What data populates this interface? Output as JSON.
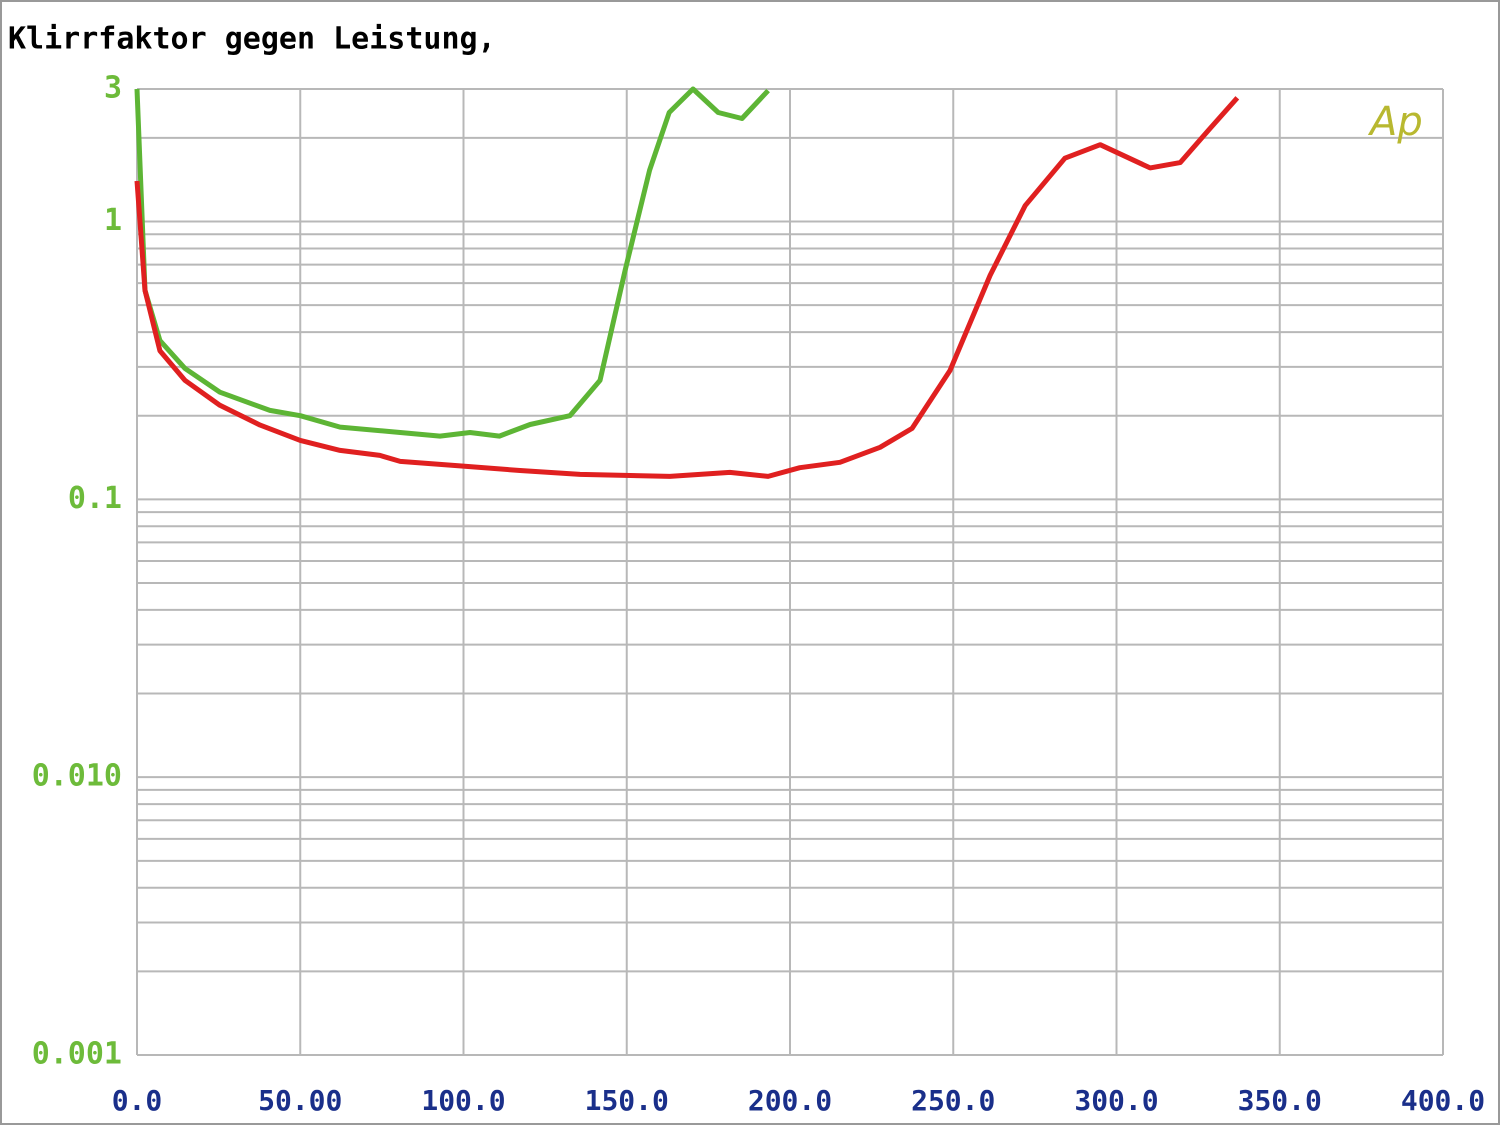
{
  "chart_data": {
    "type": "line",
    "title": "Klirrfaktor gegen Leistung,",
    "annotation": "Ap",
    "log_y": true,
    "grid": true,
    "xlim": [
      0,
      400
    ],
    "xticks": [
      {
        "value": 0,
        "label": "0.0"
      },
      {
        "value": 50,
        "label": "50.00"
      },
      {
        "value": 100,
        "label": "100.0"
      },
      {
        "value": 150,
        "label": "150.0"
      },
      {
        "value": 200,
        "label": "200.0"
      },
      {
        "value": 250,
        "label": "250.0"
      },
      {
        "value": 300,
        "label": "300.0"
      },
      {
        "value": 350,
        "label": "350.0"
      },
      {
        "value": 400,
        "label": "400.0"
      }
    ],
    "ylim": [
      0.001,
      3
    ],
    "yticks": [
      3,
      1,
      0.1,
      {
        "value": 0.01,
        "label": "0.010"
      },
      0.001
    ],
    "series": [
      {
        "color": "#5db535",
        "x": [
          0,
          2.45,
          7.0,
          14.7,
          25.4,
          40.7,
          50,
          62.2,
          80.6,
          92.8,
          102,
          111,
          120.4,
          132.6,
          141.8,
          149.5,
          157,
          163,
          170.3,
          178,
          185.3,
          193.3
        ],
        "values": [
          3,
          0.565,
          0.373,
          0.296,
          0.243,
          0.209,
          0.2,
          0.182,
          0.174,
          0.169,
          0.174,
          0.169,
          0.186,
          0.2,
          0.268,
          0.667,
          1.53,
          2.47,
          3.0,
          2.47,
          2.35,
          2.96
        ]
      },
      {
        "color": "#e02020",
        "x": [
          0,
          2.45,
          7.0,
          14.7,
          25.4,
          37.7,
          50,
          62.2,
          74.4,
          80.6,
          98.9,
          117.3,
          135.7,
          163.2,
          181.6,
          193.3,
          203,
          215.3,
          227.6,
          237.4,
          249,
          261.3,
          272,
          284.2,
          295,
          310.3,
          319.5,
          328.6,
          337
        ],
        "values": [
          1.4,
          0.565,
          0.343,
          0.268,
          0.218,
          0.185,
          0.163,
          0.15,
          0.144,
          0.137,
          0.132,
          0.127,
          0.123,
          0.121,
          0.125,
          0.121,
          0.13,
          0.136,
          0.154,
          0.18,
          0.291,
          0.64,
          1.14,
          1.69,
          1.89,
          1.56,
          1.63,
          2.16,
          2.79
        ]
      }
    ]
  }
}
